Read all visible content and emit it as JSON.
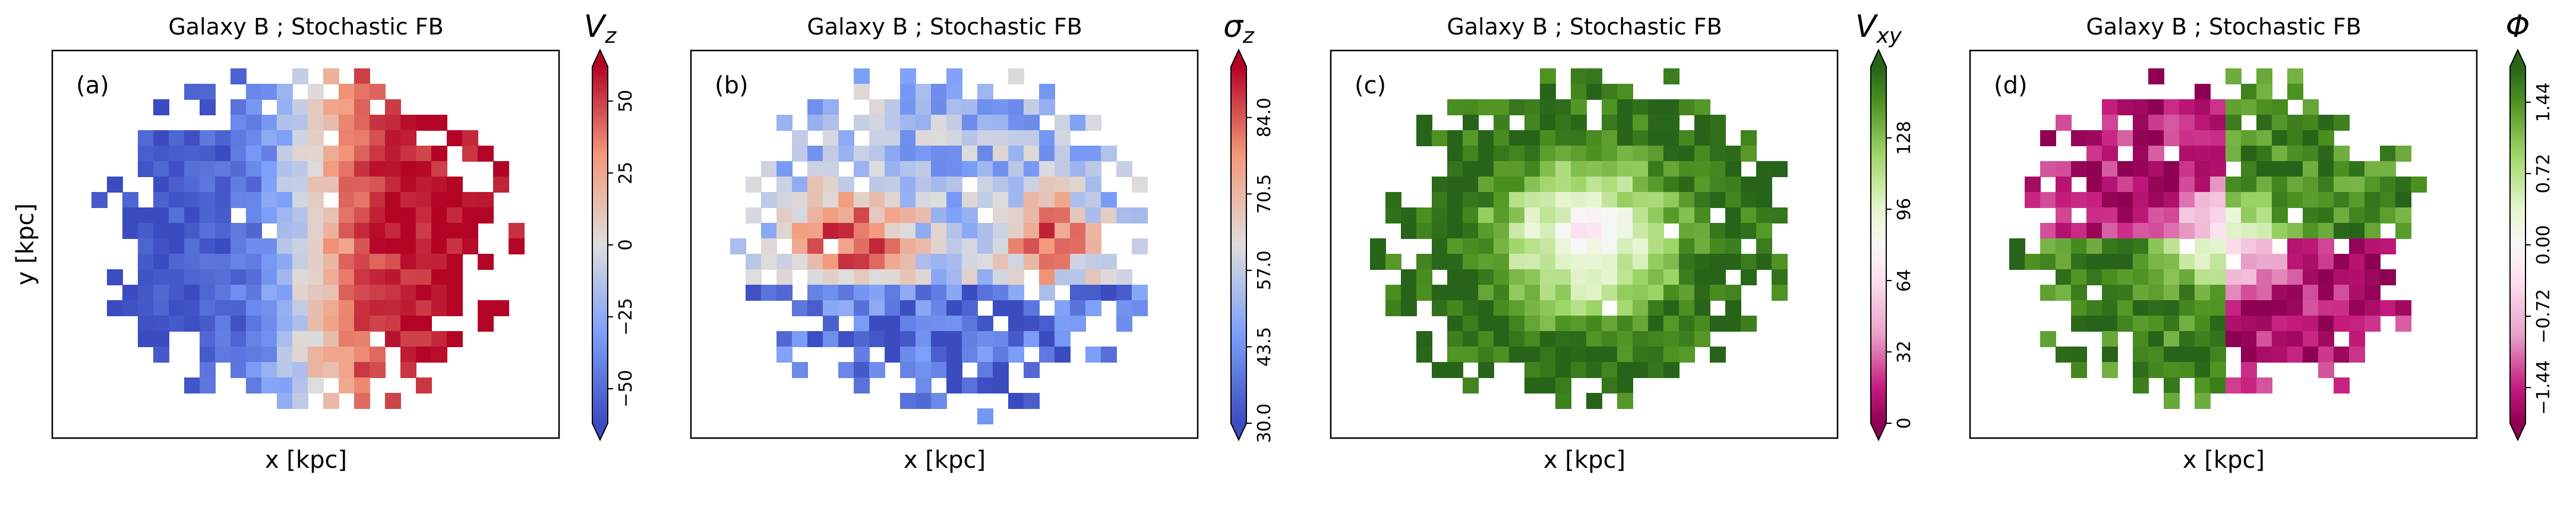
{
  "chart_data": [
    {
      "type": "heatmap",
      "panel_label": "(a)",
      "title": "Galaxy B ; Stochastic FB",
      "xlabel": "x [kpc]",
      "ylabel": "y [kpc]",
      "colormap": "coolwarm",
      "pattern": "dipole-x",
      "seed": 11,
      "colorbar": {
        "label": "V_z",
        "label_main": "V",
        "label_sub": "z",
        "range": [
          -62,
          62
        ],
        "extend": "both",
        "ticks": [
          -50,
          -25,
          0,
          25,
          50
        ],
        "tick_labels": [
          "−50",
          "−25",
          "0",
          "25",
          "50"
        ]
      }
    },
    {
      "type": "heatmap",
      "panel_label": "(b)",
      "title": "Galaxy B ; Stochastic FB",
      "xlabel": "x [kpc]",
      "ylabel": "",
      "colormap": "coolwarm",
      "pattern": "dispersion",
      "seed": 23,
      "colorbar": {
        "label": "σ_z",
        "label_main": "σ",
        "label_sub": "z",
        "range": [
          30,
          93
        ],
        "extend": "both",
        "ticks": [
          30.0,
          43.5,
          57.0,
          70.5,
          84.0
        ],
        "tick_labels": [
          "30.0",
          "43.5",
          "57.0",
          "70.5",
          "84.0"
        ]
      }
    },
    {
      "type": "heatmap",
      "panel_label": "(c)",
      "title": "Galaxy B ; Stochastic FB",
      "xlabel": "x [kpc]",
      "ylabel": "",
      "colormap": "PiYG",
      "pattern": "radial",
      "seed": 37,
      "colorbar": {
        "label": "V_xy",
        "label_main": "V",
        "label_sub": "xy",
        "range": [
          0,
          160
        ],
        "extend": "both",
        "ticks": [
          0,
          32,
          64,
          96,
          128
        ],
        "tick_labels": [
          "0",
          "32",
          "64",
          "96",
          "128"
        ]
      }
    },
    {
      "type": "heatmap",
      "panel_label": "(d)",
      "title": "Galaxy B ; Stochastic FB",
      "xlabel": "x [kpc]",
      "ylabel": "",
      "colormap": "PiYG",
      "pattern": "angle",
      "seed": 53,
      "colorbar": {
        "label": "Φ",
        "label_main": "Φ",
        "label_sub": "",
        "range": [
          -1.8,
          1.8
        ],
        "extend": "both",
        "ticks": [
          -1.44,
          -0.72,
          0.0,
          0.72,
          1.44
        ],
        "tick_labels": [
          "−1.44",
          "−0.72",
          "0.00",
          "0.72",
          "1.44"
        ]
      }
    }
  ]
}
